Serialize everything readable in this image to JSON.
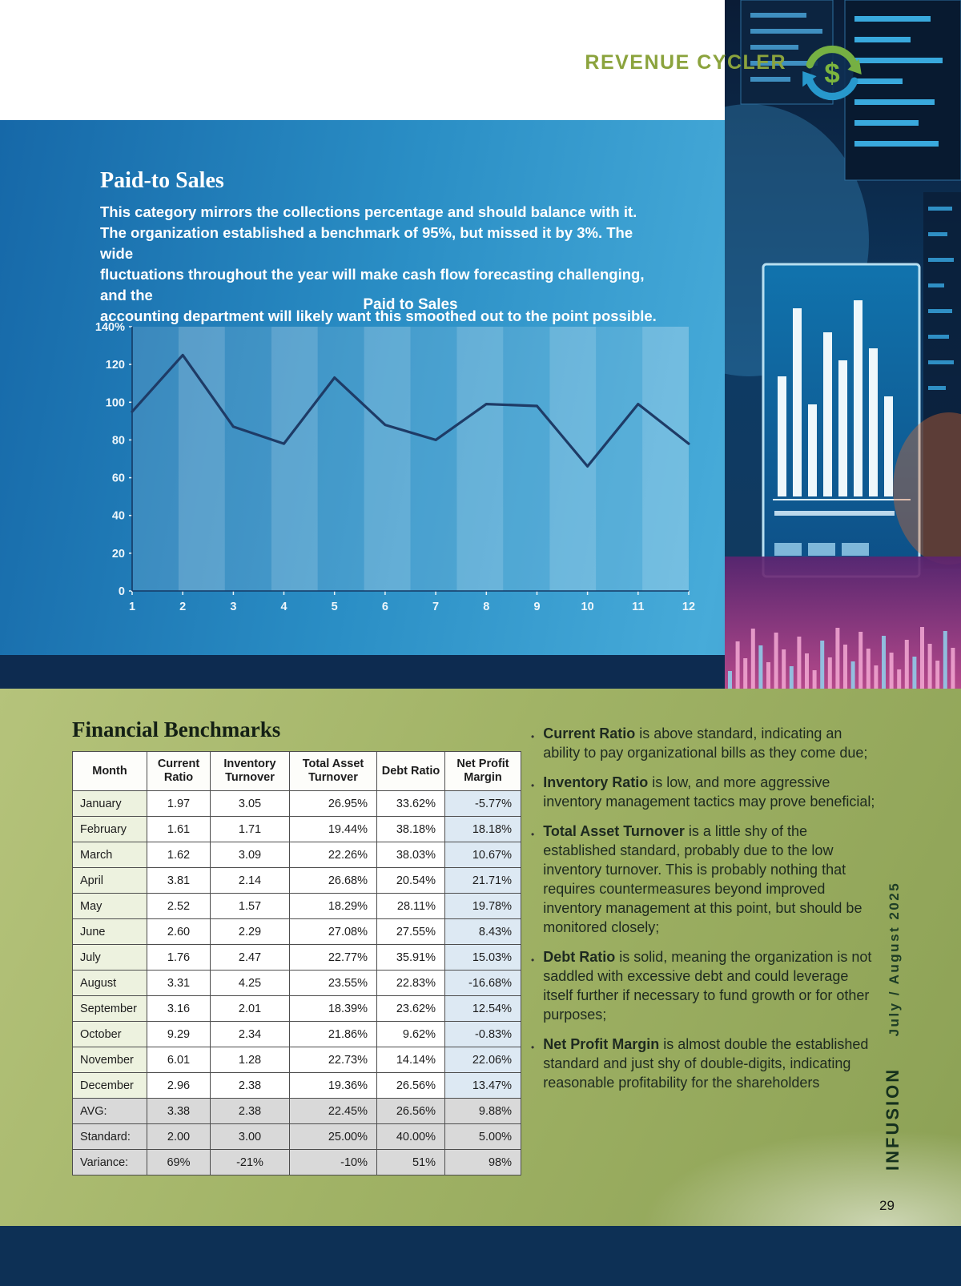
{
  "page": {
    "brand": "REVENUE CYCLER",
    "page_number": "29",
    "sidebar_vertical": {
      "logo": "INFUSION",
      "issue": "July / August 2025"
    }
  },
  "hero": {
    "title": "Paid-to Sales",
    "paragraph": "This category mirrors the collections percentage and should balance with it.\nThe organization established a benchmark of 95%, but missed it by 3%. The wide\nfluctuations throughout the year will make cash flow forecasting challenging, and the\naccounting department will likely want this smoothed out to the point possible."
  },
  "chart_data": {
    "type": "line",
    "title": "Paid to Sales",
    "x": [
      1,
      2,
      3,
      4,
      5,
      6,
      7,
      8,
      9,
      10,
      11,
      12
    ],
    "values": [
      95,
      125,
      87,
      78,
      113,
      88,
      80,
      99,
      98,
      66,
      99,
      78
    ],
    "xlabel": "",
    "ylabel": "",
    "ylim": [
      0,
      140
    ],
    "ytick_step": 20,
    "ytick_top_label": "140%",
    "legend": "none",
    "grid": "vertical-bands",
    "line_color": "#1e3b66",
    "band_opacity": [
      0.13,
      0.26
    ]
  },
  "benchmarks": {
    "title": "Financial Benchmarks",
    "table": {
      "headers": [
        "Month",
        "Current Ratio",
        "Inventory Turnover",
        "Total Asset Turnover",
        "Debt Ratio",
        "Net Profit Margin"
      ],
      "rows": [
        [
          "January",
          "1.97",
          "3.05",
          "26.95%",
          "33.62%",
          "-5.77%"
        ],
        [
          "February",
          "1.61",
          "1.71",
          "19.44%",
          "38.18%",
          "18.18%"
        ],
        [
          "March",
          "1.62",
          "3.09",
          "22.26%",
          "38.03%",
          "10.67%"
        ],
        [
          "April",
          "3.81",
          "2.14",
          "26.68%",
          "20.54%",
          "21.71%"
        ],
        [
          "May",
          "2.52",
          "1.57",
          "18.29%",
          "28.11%",
          "19.78%"
        ],
        [
          "June",
          "2.60",
          "2.29",
          "27.08%",
          "27.55%",
          "8.43%"
        ],
        [
          "July",
          "1.76",
          "2.47",
          "22.77%",
          "35.91%",
          "15.03%"
        ],
        [
          "August",
          "3.31",
          "4.25",
          "23.55%",
          "22.83%",
          "-16.68%"
        ],
        [
          "September",
          "3.16",
          "2.01",
          "18.39%",
          "23.62%",
          "12.54%"
        ],
        [
          "October",
          "9.29",
          "2.34",
          "21.86%",
          "9.62%",
          "-0.83%"
        ],
        [
          "November",
          "6.01",
          "1.28",
          "22.73%",
          "14.14%",
          "22.06%"
        ],
        [
          "December",
          "2.96",
          "2.38",
          "19.36%",
          "26.56%",
          "13.47%"
        ]
      ],
      "summary_rows": [
        [
          "AVG:",
          "3.38",
          "2.38",
          "22.45%",
          "26.56%",
          "9.88%"
        ],
        [
          "Standard:",
          "2.00",
          "3.00",
          "25.00%",
          "40.00%",
          "5.00%"
        ],
        [
          "Variance:",
          "69%",
          "-21%",
          "-10%",
          "51%",
          "98%"
        ]
      ]
    },
    "bullets": [
      {
        "lead": "Current Ratio",
        "text": " is above standard, indicating an ability to pay organizational bills as they come due;"
      },
      {
        "lead": "Inventory Ratio",
        "text": " is low, and more aggressive inventory management tactics may prove beneficial;"
      },
      {
        "lead": "Total Asset Turnover",
        "text": " is a little shy of the established standard, probably due to the low inventory turnover. This is probably nothing that requires countermeasures beyond improved inventory management at this point, but should be monitored closely;"
      },
      {
        "lead": "Debt Ratio",
        "text": " is solid, meaning the organization is not saddled with excessive debt and could leverage itself further if necessary to fund growth or for other purposes;"
      },
      {
        "lead": "Net Profit Margin",
        "text": " is almost double the established standard and just shy of double-digits, indicating reasonable profitability for the shareholders"
      }
    ]
  },
  "colors": {
    "brand_green": "#8ba33d",
    "panel_blue": "#2a8ec5",
    "navy": "#0d2b50",
    "olive": "#a2b366",
    "chart_line": "#1e3b66"
  }
}
